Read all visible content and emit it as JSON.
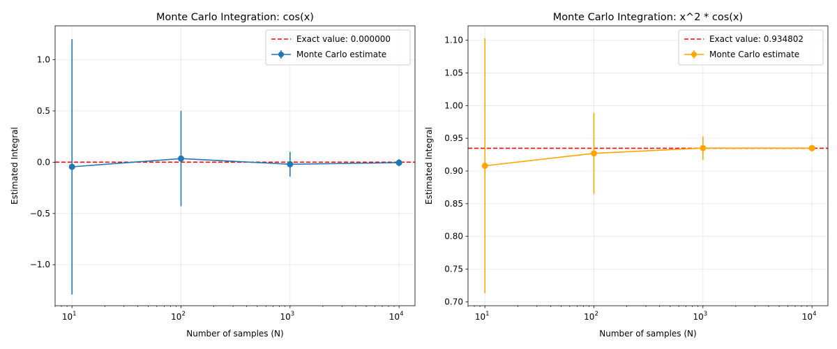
{
  "chart_data": [
    {
      "type": "line",
      "title": "Monte Carlo Integration: cos(x)",
      "xlabel": "Number of samples (N)",
      "ylabel": "Estimated Integral",
      "x_scale": "log",
      "x": [
        10,
        100,
        1000,
        10000
      ],
      "x_tick_labels": [
        {
          "base": "10",
          "exp": "1"
        },
        {
          "base": "10",
          "exp": "2"
        },
        {
          "base": "10",
          "exp": "3"
        },
        {
          "base": "10",
          "exp": "4"
        }
      ],
      "xlim": [
        7,
        14000
      ],
      "ylim": [
        -1.4,
        1.33
      ],
      "y_ticks": [
        -1.0,
        -0.5,
        0.0,
        0.5,
        1.0
      ],
      "y_tick_labels": [
        "−1.0",
        "−0.5",
        "0.0",
        "0.5",
        "1.0"
      ],
      "grid": true,
      "legend_position": "top-right",
      "exact_value": 0.0,
      "exact_label": "Exact value: 0.000000",
      "exact_color": "#ff0000",
      "series": [
        {
          "name": "Monte Carlo estimate",
          "color": "#1f77b4",
          "values": [
            -0.045,
            0.035,
            -0.02,
            -0.005
          ],
          "errors": [
            1.245,
            0.465,
            0.12,
            0.035
          ]
        }
      ]
    },
    {
      "type": "line",
      "title": "Monte Carlo Integration: x^2 * cos(x)",
      "xlabel": "Number of samples (N)",
      "ylabel": "Estimated Integral",
      "x_scale": "log",
      "x": [
        10,
        100,
        1000,
        10000
      ],
      "x_tick_labels": [
        {
          "base": "10",
          "exp": "1"
        },
        {
          "base": "10",
          "exp": "2"
        },
        {
          "base": "10",
          "exp": "3"
        },
        {
          "base": "10",
          "exp": "4"
        }
      ],
      "xlim": [
        7,
        14000
      ],
      "ylim": [
        0.694,
        1.122
      ],
      "y_ticks": [
        0.7,
        0.75,
        0.8,
        0.85,
        0.9,
        0.95,
        1.0,
        1.05,
        1.1
      ],
      "y_tick_labels": [
        "0.70",
        "0.75",
        "0.80",
        "0.85",
        "0.90",
        "0.95",
        "1.00",
        "1.05",
        "1.10"
      ],
      "grid": true,
      "legend_position": "top-right",
      "exact_value": 0.934802,
      "exact_label": "Exact value: 0.934802",
      "exact_color": "#ff0000",
      "series": [
        {
          "name": "Monte Carlo estimate",
          "color": "#ffa500",
          "values": [
            0.908,
            0.927,
            0.935,
            0.935
          ],
          "errors": [
            0.195,
            0.062,
            0.018,
            0.005
          ]
        }
      ]
    }
  ]
}
